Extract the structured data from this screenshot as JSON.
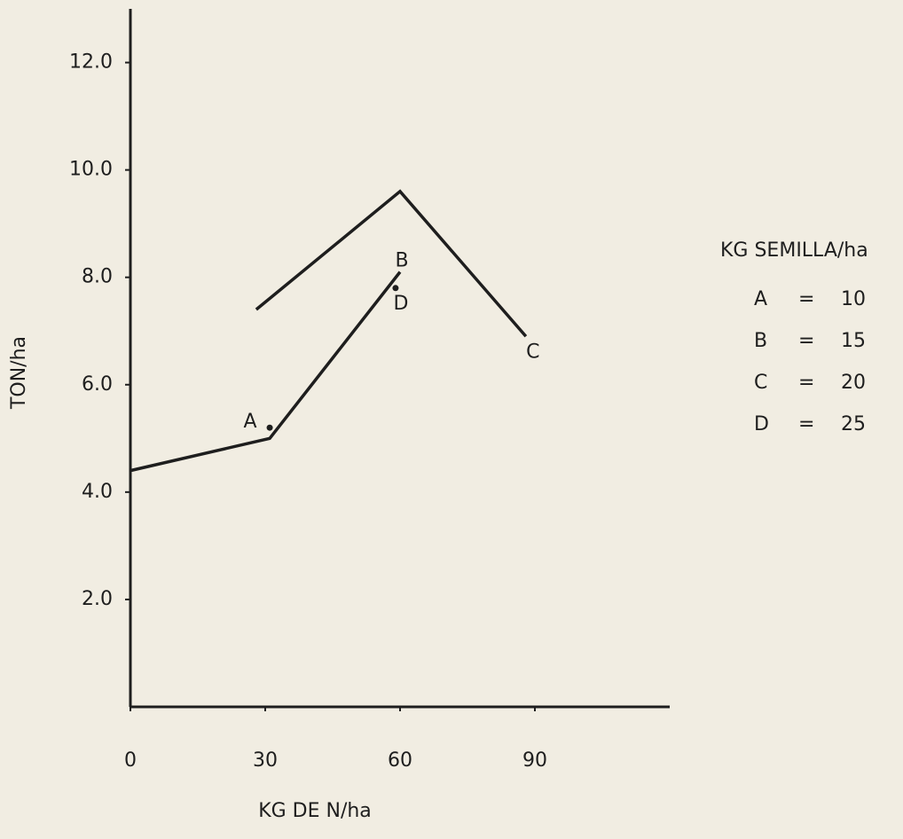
{
  "chart_data": {
    "type": "line",
    "xlabel": "KG DE N/ha",
    "ylabel": "TON/ha",
    "xlim": [
      0,
      120
    ],
    "ylim": [
      0,
      13
    ],
    "xticks": [
      0,
      30,
      60,
      90
    ],
    "yticks": [
      {
        "value": 2,
        "label": "2.0"
      },
      {
        "value": 4,
        "label": "4.0"
      },
      {
        "value": 6,
        "label": "6.0"
      },
      {
        "value": 8,
        "label": "8.0"
      },
      {
        "value": 10,
        "label": "10.0"
      },
      {
        "value": 12,
        "label": "12.0"
      }
    ],
    "color": "#1e1e1e",
    "series": [
      {
        "x": [
          0,
          31,
          60
        ],
        "values": [
          4.4,
          5.0,
          8.1
        ]
      },
      {
        "x": [
          28,
          60,
          88
        ],
        "values": [
          7.4,
          9.6,
          6.9
        ]
      }
    ],
    "annotations": [
      {
        "text": "A",
        "x": 31,
        "y": 5.2,
        "dot": true
      },
      {
        "text": "B",
        "x": 60,
        "y": 8.1,
        "dot": false
      },
      {
        "text": "C",
        "x": 88,
        "y": 6.9,
        "dot": false
      },
      {
        "text": "D",
        "x": 59,
        "y": 7.8,
        "dot": true
      }
    ],
    "legend": {
      "title": "KG SEMILLA/ha",
      "entries": [
        {
          "key": "A",
          "sign": "=",
          "value": 10
        },
        {
          "key": "B",
          "sign": "=",
          "value": 15
        },
        {
          "key": "C",
          "sign": "=",
          "value": 20
        },
        {
          "key": "D",
          "sign": "=",
          "value": 25
        }
      ]
    }
  }
}
